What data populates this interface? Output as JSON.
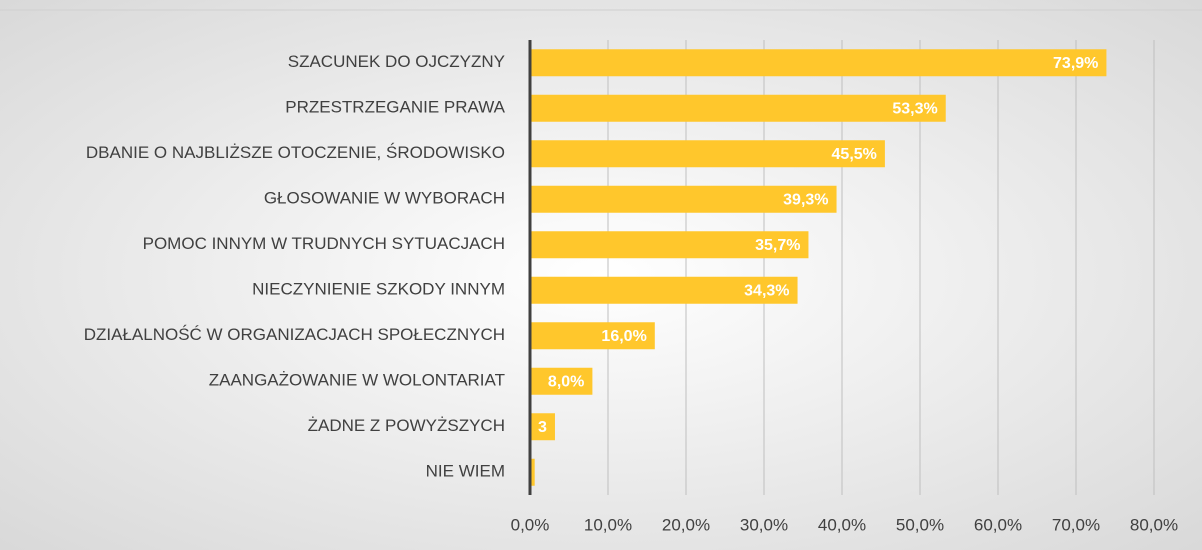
{
  "chart_data": {
    "type": "hbar",
    "categories": [
      "SZACUNEK DO OJCZYZNY",
      "PRZESTRZEGANIE PRAWA",
      "DBANIE O NAJBLIŻSZE OTOCZENIE, ŚRODOWISKO",
      "GŁOSOWANIE W WYBORACH",
      "POMOC INNYM W TRUDNYCH SYTUACJACH",
      "NIECZYNIENIE SZKODY INNYM",
      "DZIAŁALNOŚĆ W ORGANIZACJACH SPOŁECZNYCH",
      "ZAANGAŻOWANIE W WOLONTARIAT",
      "ŻADNE Z POWYŻSZYCH",
      "NIE WIEM"
    ],
    "values": [
      73.9,
      53.3,
      45.5,
      39.3,
      35.7,
      34.3,
      16.0,
      8.0,
      3.2,
      0.6
    ],
    "value_labels": [
      "73,9%",
      "53,3%",
      "45,5%",
      "39,3%",
      "35,7%",
      "34,3%",
      "16,0%",
      "8,0%",
      "3",
      null
    ],
    "color": "#ffc72c",
    "xlim": [
      0,
      80
    ],
    "xticks": [
      {
        "value": 0,
        "label": "0,0%"
      },
      {
        "value": 10,
        "label": "10,0%"
      },
      {
        "value": 20,
        "label": "20,0%"
      },
      {
        "value": 30,
        "label": "30,0%"
      },
      {
        "value": 40,
        "label": "40,0%"
      },
      {
        "value": 50,
        "label": "50,0%"
      },
      {
        "value": 60,
        "label": "60,0%"
      },
      {
        "value": 70,
        "label": "70,0%"
      },
      {
        "value": 80,
        "label": "80,0%"
      }
    ],
    "grid": true
  }
}
